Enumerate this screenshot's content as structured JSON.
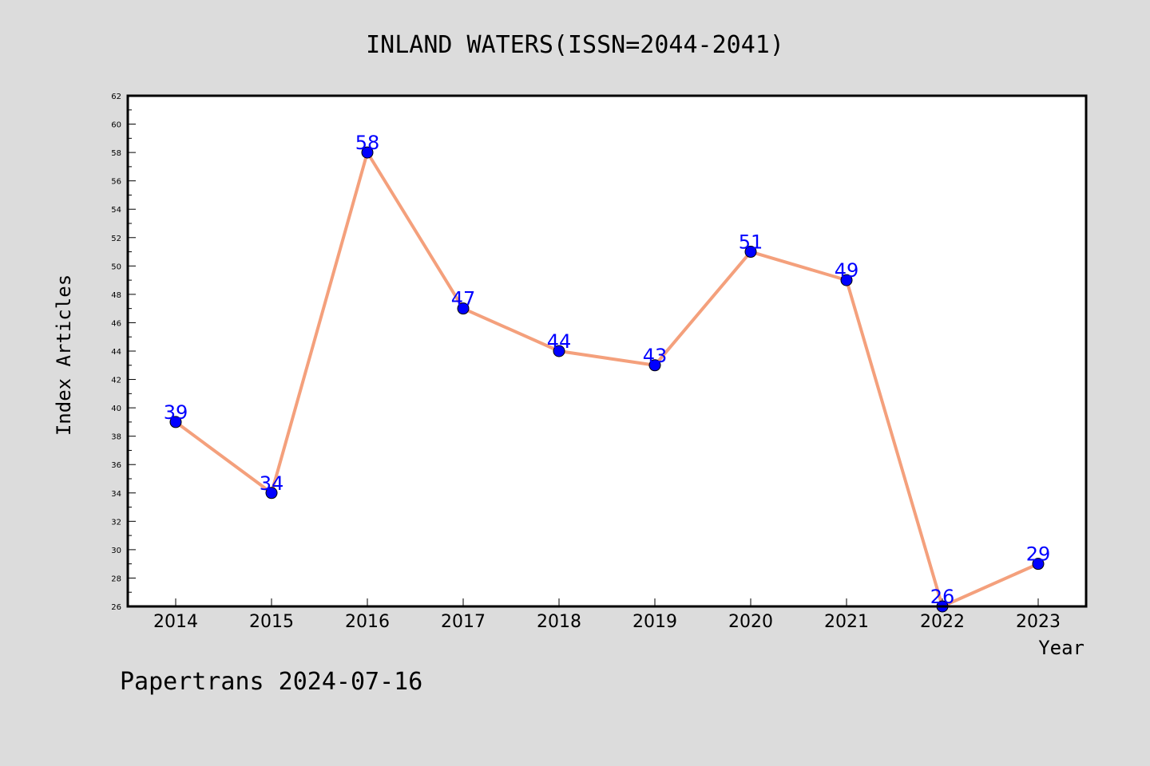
{
  "chart_data": {
    "type": "line",
    "title": "INLAND WATERS(ISSN=2044-2041)",
    "xlabel": "Year",
    "ylabel": "Index Articles",
    "categories": [
      "2014",
      "2015",
      "2016",
      "2017",
      "2018",
      "2019",
      "2020",
      "2021",
      "2022",
      "2023"
    ],
    "series": [
      {
        "values": [
          39,
          34,
          58,
          47,
          44,
          43,
          51,
          49,
          26,
          29
        ]
      }
    ],
    "ylim": [
      26,
      62
    ],
    "yticks": [
      "26",
      "28",
      "30",
      "32",
      "34",
      "36",
      "38",
      "40",
      "42",
      "44",
      "46",
      "48",
      "50",
      "52",
      "54",
      "56",
      "58",
      "60",
      "62"
    ],
    "grid": false,
    "colors": {
      "line": "#f4a07c",
      "marker": "#0000ff",
      "label": "#0000ff",
      "background": "#dcdcdc",
      "plot_bg": "#ffffff"
    }
  },
  "footer": {
    "text": "Papertrans 2024-07-16"
  }
}
